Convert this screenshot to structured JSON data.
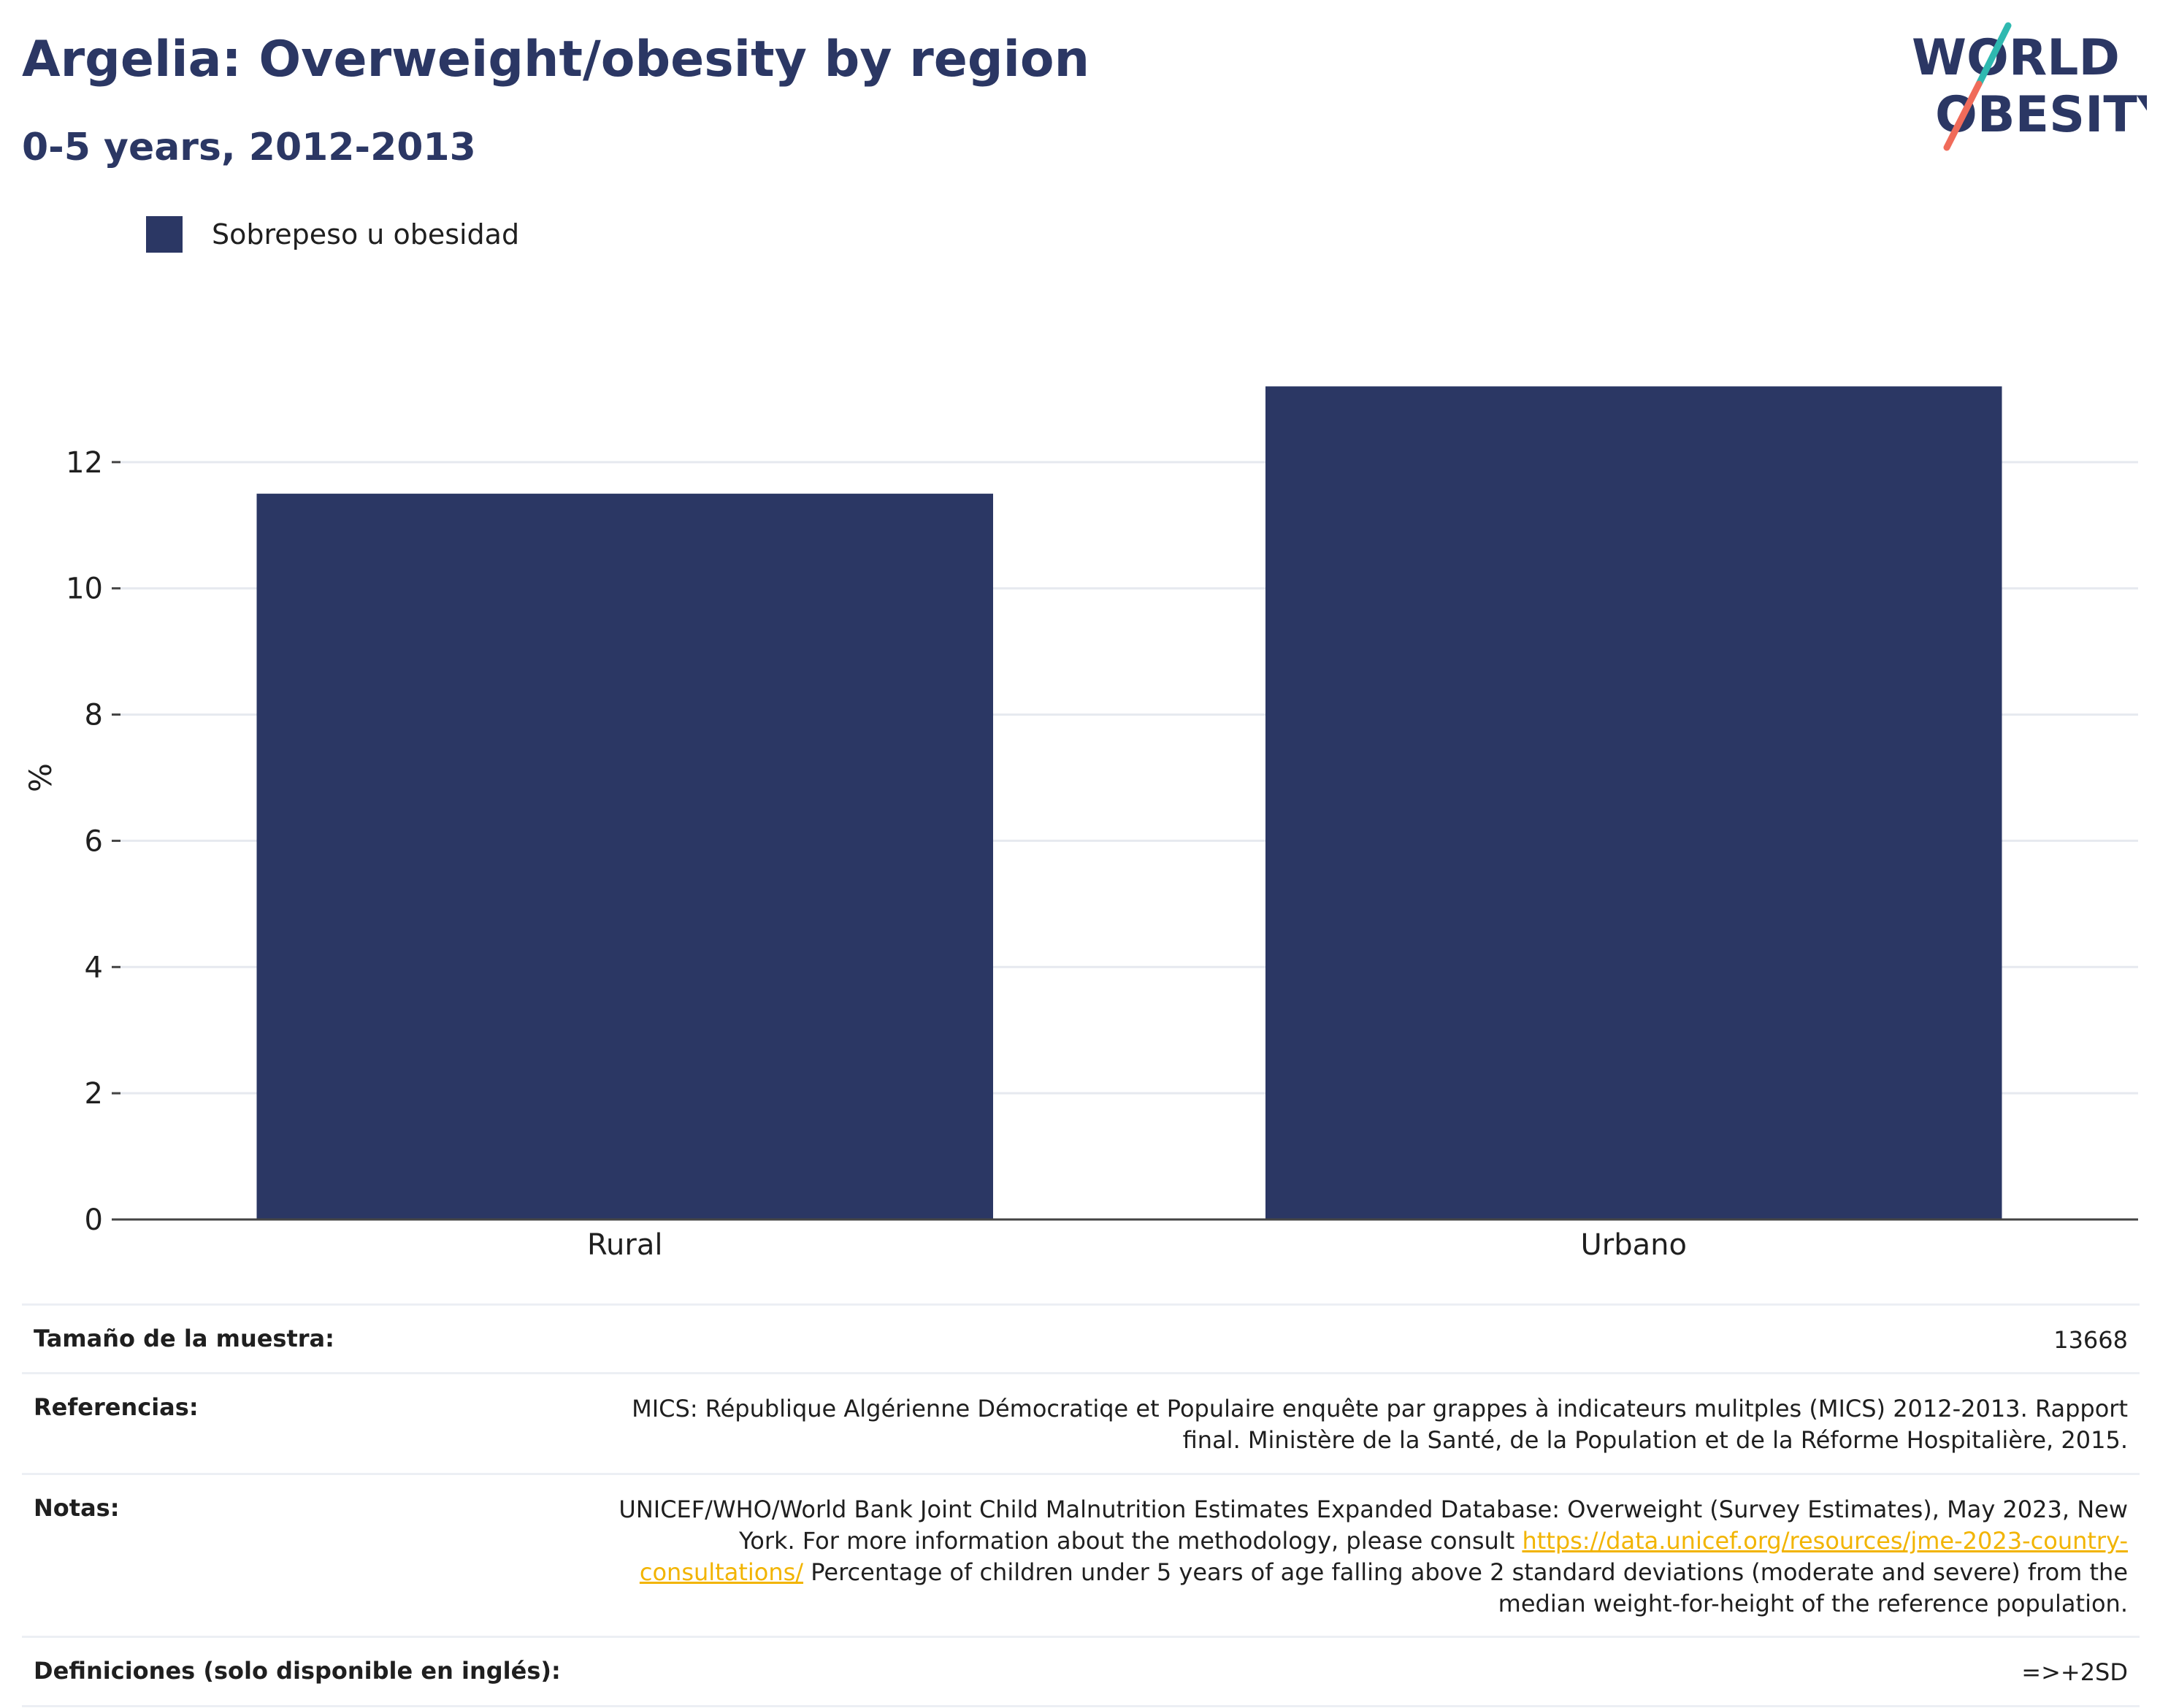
{
  "header": {
    "title": "Argelia: Overweight/obesity by region",
    "subtitle": "0-5 years, 2012-2013"
  },
  "logo": {
    "line1": "WORLD",
    "line2": "OBESITY",
    "slash_colors": [
      "#2fb9b0",
      "#f06b5a"
    ]
  },
  "legend": {
    "label": "Sobrepeso u obesidad",
    "color": "#2b3764"
  },
  "chart_data": {
    "type": "bar",
    "categories": [
      "Rural",
      "Urbano"
    ],
    "series": [
      {
        "name": "Sobrepeso u obesidad",
        "values": [
          11.5,
          13.2
        ],
        "color": "#2b3764"
      }
    ],
    "ylabel": "%",
    "ylim": [
      0,
      14
    ],
    "yticks": [
      0,
      2,
      4,
      6,
      8,
      10,
      12
    ],
    "grid": true
  },
  "info": {
    "sample_label": "Tamaño de la muestra:",
    "sample_value": "13668",
    "refs_label": "Referencias:",
    "refs_value": "MICS: République Algérienne Démocratiqe et Populaire enquête par grappes à indicateurs mulitples (MICS) 2012-2013. Rapport final. Ministère de la Santé, de la Population et de la Réforme Hospitalière, 2015.",
    "notes_label": "Notas:",
    "notes_value_1": "UNICEF/WHO/World Bank Joint Child Malnutrition Estimates Expanded Database: Overweight (Survey Estimates), May 2023, New York. For more information about the methodology, please consult",
    "notes_link": "https://data.unicef.org/resources/jme-2023-country-consultations/",
    "notes_value_2": "Percentage of children under 5 years of age falling above 2 standard deviations (moderate and severe) from the median weight-for-height of the reference population.",
    "defs_label": "Definiciones (solo disponible en inglés):",
    "defs_value": "=>+2SD"
  }
}
